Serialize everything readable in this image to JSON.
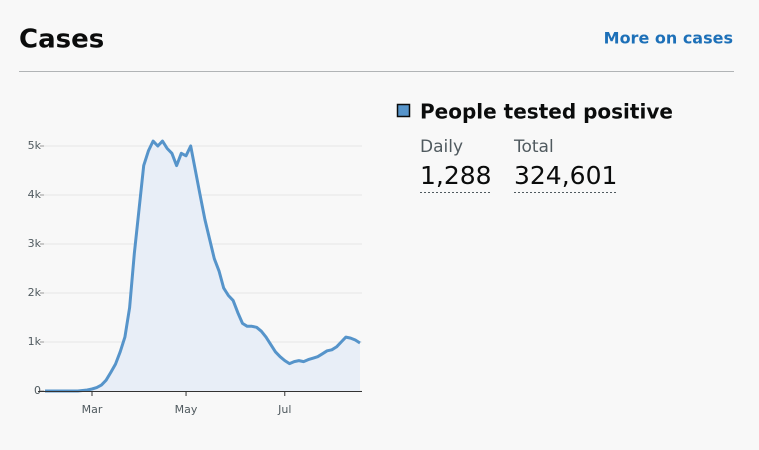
{
  "header": {
    "title": "Cases",
    "link": "More on cases"
  },
  "stats": [
    {
      "label": "Daily",
      "value": "1,288"
    },
    {
      "label": "Total",
      "value": "324,601"
    }
  ],
  "chart_data": {
    "type": "area-line",
    "categories": [
      null,
      null,
      null,
      null,
      null,
      null,
      null,
      null,
      null,
      null,
      "Mar",
      null,
      null,
      null,
      null,
      null,
      null,
      null,
      null,
      null,
      null,
      null,
      null,
      null,
      null,
      null,
      null,
      null,
      null,
      null,
      "May",
      null,
      null,
      null,
      null,
      null,
      null,
      null,
      null,
      null,
      null,
      null,
      null,
      null,
      null,
      null,
      null,
      null,
      null,
      null,
      null,
      "Jul",
      null,
      null,
      null,
      null,
      null,
      null,
      null,
      null,
      null,
      null,
      null,
      null,
      null,
      null,
      null,
      null
    ],
    "series": [
      {
        "name": "People tested positive",
        "color": "#5694ca",
        "fill": "#e8eef7",
        "values": [
          0,
          0,
          0,
          0,
          0,
          0,
          0,
          0,
          10,
          20,
          40,
          70,
          120,
          220,
          380,
          550,
          800,
          1100,
          1700,
          2800,
          3700,
          4600,
          4900,
          5100,
          5000,
          5100,
          4950,
          4850,
          4600,
          4850,
          4800,
          5000,
          4500,
          4000,
          3500,
          3100,
          2700,
          2450,
          2100,
          1950,
          1850,
          1600,
          1380,
          1320,
          1320,
          1300,
          1220,
          1100,
          950,
          800,
          700,
          620,
          560,
          600,
          620,
          600,
          640,
          670,
          700,
          760,
          820,
          840,
          900,
          1000,
          1100,
          1080,
          1040,
          980
        ]
      }
    ],
    "ylim": [
      0,
      5300
    ],
    "yticks": [
      0,
      {
        "value": 1000,
        "label": "1k"
      },
      {
        "value": 2000,
        "label": "2k"
      },
      {
        "value": 3000,
        "label": "3k"
      },
      {
        "value": 4000,
        "label": "4k"
      },
      {
        "value": 5000,
        "label": "5k"
      }
    ],
    "grid": true
  }
}
